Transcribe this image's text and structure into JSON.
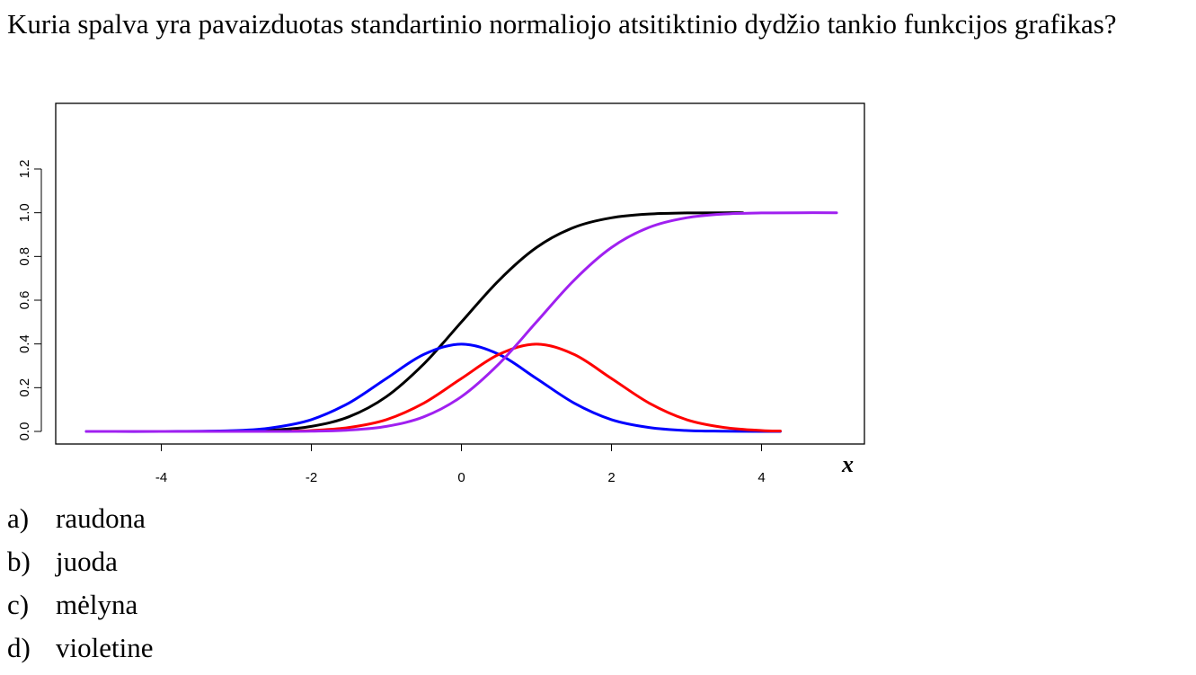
{
  "question": "Kuria spalva yra pavaizduotas standartinio normaliojo atsitiktinio dydžio tankio funkcijos grafikas?",
  "answers": [
    {
      "letter": "a)",
      "text": "raudona"
    },
    {
      "letter": "b)",
      "text": "juoda"
    },
    {
      "letter": "c)",
      "text": "mėlyna"
    },
    {
      "letter": "d)",
      "text": "violetine"
    }
  ],
  "chart_data": {
    "type": "line",
    "title": "",
    "xlabel": "x",
    "ylabel": "",
    "xlim": [
      -5,
      5
    ],
    "ylim": [
      0,
      1.2
    ],
    "x_ticks": [
      -4,
      -2,
      0,
      2,
      4
    ],
    "y_ticks": [
      0.0,
      0.2,
      0.4,
      0.6,
      0.8,
      1.0,
      1.2
    ],
    "grid": false,
    "legend": "none",
    "series": [
      {
        "color": "#000000",
        "x": [
          -3.25,
          -3,
          -2.5,
          -2,
          -1.5,
          -1,
          -0.5,
          0,
          0.5,
          1,
          1.5,
          2,
          2.5,
          3,
          3.5,
          3.75
        ],
        "y": [
          0.001,
          0.001,
          0.006,
          0.023,
          0.067,
          0.159,
          0.309,
          0.5,
          0.691,
          0.841,
          0.933,
          0.977,
          0.994,
          0.999,
          1.0,
          1.0
        ]
      },
      {
        "color": "#0000ff",
        "x": [
          -5,
          -4,
          -3,
          -2.5,
          -2,
          -1.5,
          -1,
          -0.5,
          0,
          0.5,
          1,
          1.5,
          2,
          2.5,
          3,
          3.5,
          4,
          4.25
        ],
        "y": [
          0.0,
          0.0,
          0.004,
          0.018,
          0.054,
          0.13,
          0.242,
          0.352,
          0.399,
          0.352,
          0.242,
          0.13,
          0.054,
          0.018,
          0.004,
          0.001,
          0.0,
          0.0
        ]
      },
      {
        "color": "#ff0000",
        "x": [
          -2.25,
          -2,
          -1.5,
          -1,
          -0.5,
          0,
          0.5,
          1,
          1.5,
          2,
          2.5,
          3,
          3.5,
          4,
          4.25
        ],
        "y": [
          0.002,
          0.004,
          0.018,
          0.054,
          0.13,
          0.242,
          0.352,
          0.399,
          0.352,
          0.242,
          0.13,
          0.054,
          0.018,
          0.004,
          0.002
        ]
      },
      {
        "color": "#a020f0",
        "x": [
          -5,
          -4,
          -3,
          -2.5,
          -2,
          -1.5,
          -1,
          -0.5,
          0,
          0.5,
          1,
          1.5,
          2,
          2.5,
          3,
          3.5,
          4,
          4.5,
          5
        ],
        "y": [
          0.0,
          0.0,
          0.0,
          0.0,
          0.001,
          0.006,
          0.023,
          0.067,
          0.159,
          0.309,
          0.5,
          0.691,
          0.841,
          0.933,
          0.977,
          0.994,
          0.999,
          1.0,
          1.0
        ]
      }
    ]
  }
}
